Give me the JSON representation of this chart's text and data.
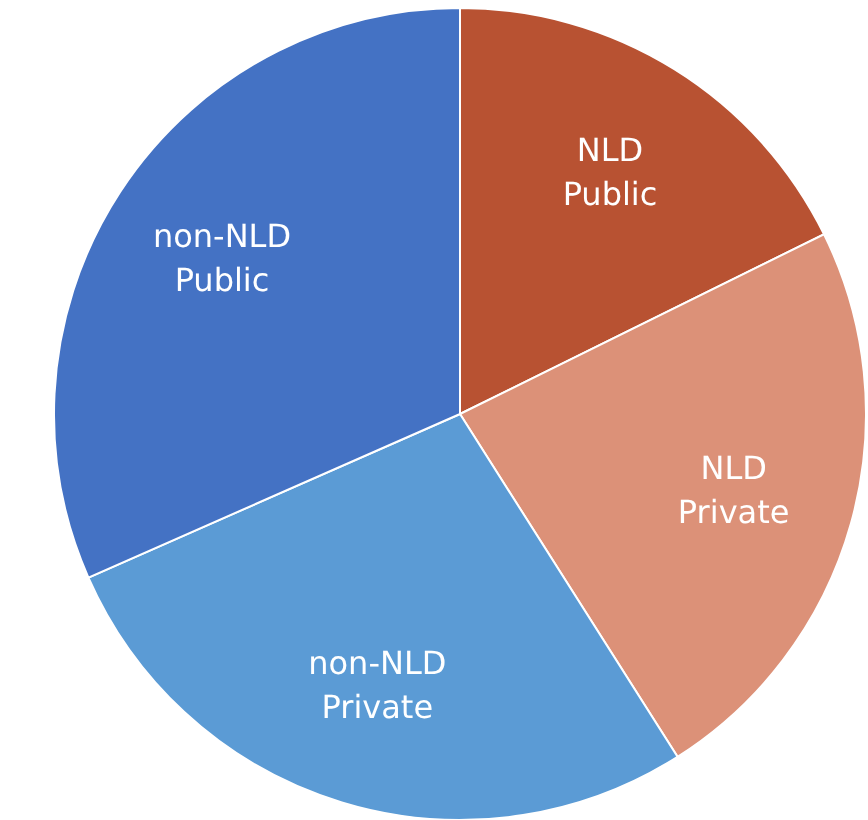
{
  "chart_data": {
    "type": "pie",
    "categories": [
      "NLD Public",
      "NLD Private",
      "non-NLD Private",
      "non-NLD Public"
    ],
    "values": [
      17.7,
      23.3,
      27.4,
      31.6
    ],
    "colors": [
      "#b85232",
      "#dc9178",
      "#5b9bd5",
      "#4472c4"
    ]
  }
}
